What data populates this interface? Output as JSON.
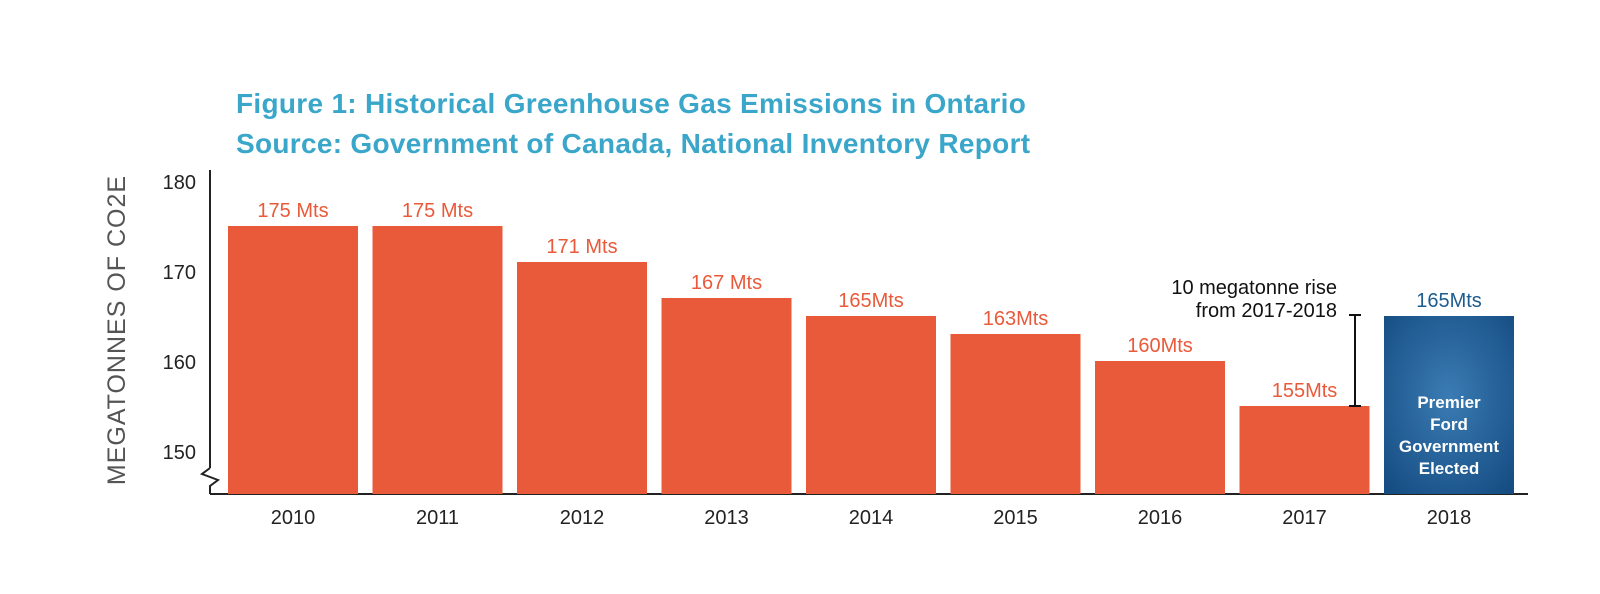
{
  "chart_data": {
    "type": "bar",
    "title": "Figure 1: Historical Greenhouse Gas Emissions in Ontario",
    "subtitle": "Source: Government of Canada, National Inventory Report",
    "ylabel": "MEGATONNES OF CO2E",
    "xlabel": "",
    "ylim": [
      145,
      181
    ],
    "yticks": [
      150,
      160,
      170,
      180
    ],
    "axis_break": true,
    "grid": false,
    "categories": [
      "2010",
      "2011",
      "2012",
      "2013",
      "2014",
      "2015",
      "2016",
      "2017",
      "2018"
    ],
    "values": [
      175,
      175,
      171,
      167,
      165,
      163,
      160,
      155,
      165
    ],
    "data_labels": [
      "175 Mts",
      "175 Mts",
      "171 Mts",
      "167 Mts",
      "165Mts",
      "163Mts",
      "160Mts",
      "155Mts",
      "165Mts"
    ],
    "colors": {
      "default": "#e95a3a",
      "highlight": "#1c5a8f",
      "highlight_label": "#1d5c8e",
      "title": "#3aa6c9",
      "axis": "#222222"
    },
    "highlight_index": 8,
    "highlight_text": [
      "Premier",
      "Ford",
      "Government",
      "Elected"
    ],
    "annotation": {
      "lines": [
        "10 megatonne rise",
        "from 2017-2018"
      ],
      "from_value": 155,
      "to_value": 165
    }
  }
}
